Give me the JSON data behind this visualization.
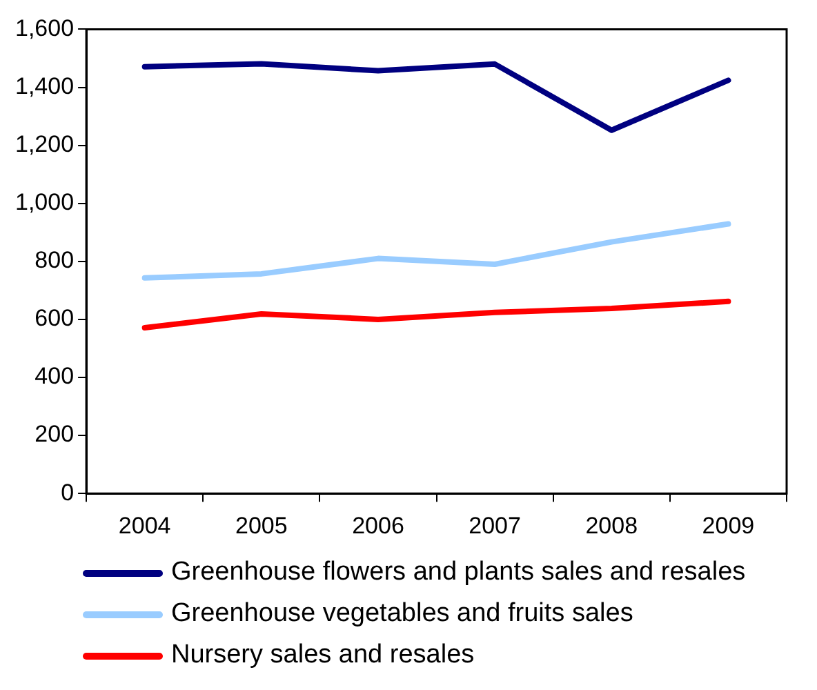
{
  "chart_data": {
    "type": "line",
    "categories": [
      "2004",
      "2005",
      "2006",
      "2007",
      "2008",
      "2009"
    ],
    "ylim": [
      0,
      1600
    ],
    "yticks": [
      0,
      {
        "value": 200,
        "label": "200"
      },
      {
        "value": 400,
        "label": "400"
      },
      {
        "value": 600,
        "label": "600"
      },
      {
        "value": 800,
        "label": "800"
      },
      {
        "value": 1000,
        "label": "1,000"
      },
      {
        "value": 1200,
        "label": "1,200"
      },
      {
        "value": 1400,
        "label": "1,400"
      },
      {
        "value": 1600,
        "label": "1,600"
      }
    ],
    "grid": false,
    "legend": "bottom",
    "marker": "none",
    "line_style": "solid",
    "series": [
      {
        "name": "Greenhouse flowers and plants sales and resales",
        "color": "#000080",
        "values": [
          1471,
          1481,
          1457,
          1480,
          1252,
          1424
        ]
      },
      {
        "name": "Greenhouse vegetables and fruits sales",
        "color": "#99ccff",
        "values": [
          743,
          757,
          810,
          790,
          867,
          929
        ]
      },
      {
        "name": "Nursery sales and resales",
        "color": "#ff0000",
        "values": [
          571,
          619,
          600,
          624,
          638,
          662
        ]
      }
    ]
  }
}
